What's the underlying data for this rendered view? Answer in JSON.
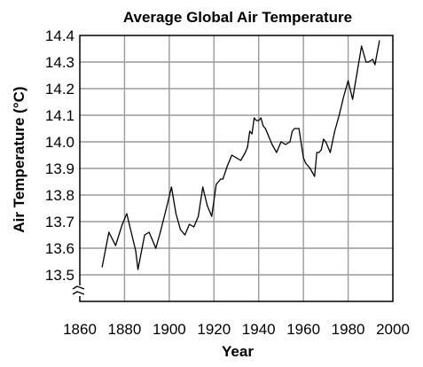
{
  "chart_data": {
    "type": "line",
    "title": "Average Global Air Temperature",
    "xlabel": "Year",
    "ylabel": "Air Temperature (°C)",
    "xlim": [
      1860,
      2000
    ],
    "ylim": [
      13.4,
      14.4
    ],
    "y_axis_break": true,
    "grid": true,
    "x_ticks": [
      1860,
      1880,
      1900,
      1920,
      1940,
      1960,
      1980,
      2000
    ],
    "y_ticks": [
      13.5,
      13.6,
      13.7,
      13.8,
      13.9,
      14.0,
      14.1,
      14.2,
      14.3,
      14.4
    ],
    "y_tick_labels": [
      "13.5",
      "13.6",
      "13.7",
      "13.8",
      "13.9",
      "14.0",
      "14.1",
      "14.2",
      "14.3",
      "14.4"
    ],
    "series": [
      {
        "x": [
          1870,
          1873,
          1876,
          1879,
          1881,
          1883,
          1885,
          1886,
          1889,
          1891,
          1894,
          1896,
          1899,
          1901,
          1903,
          1905,
          1907,
          1909,
          1911,
          1913,
          1915,
          1917,
          1919,
          1921,
          1923,
          1924,
          1926,
          1928,
          1930,
          1932,
          1934,
          1935,
          1936,
          1937,
          1938,
          1939,
          1940,
          1941,
          1942,
          1943,
          1944,
          1946,
          1948,
          1950,
          1952,
          1954,
          1955,
          1956,
          1958,
          1960,
          1961,
          1962,
          1963,
          1965,
          1966,
          1967,
          1968,
          1969,
          1970,
          1971,
          1972,
          1974,
          1976,
          1978,
          1980,
          1982,
          1984,
          1986,
          1988,
          1989,
          1991,
          1992,
          1994
        ],
        "y": [
          13.53,
          13.66,
          13.61,
          13.69,
          13.73,
          13.66,
          13.59,
          13.52,
          13.65,
          13.66,
          13.6,
          13.66,
          13.76,
          13.83,
          13.73,
          13.67,
          13.65,
          13.69,
          13.68,
          13.72,
          13.83,
          13.76,
          13.72,
          13.84,
          13.86,
          13.86,
          13.91,
          13.95,
          13.94,
          13.93,
          13.96,
          13.98,
          14.04,
          14.03,
          14.09,
          14.08,
          14.08,
          14.09,
          14.06,
          14.05,
          14.03,
          13.99,
          13.96,
          14.0,
          13.99,
          14.0,
          14.04,
          14.05,
          14.05,
          13.94,
          13.92,
          13.91,
          13.9,
          13.87,
          13.96,
          13.96,
          13.97,
          14.01,
          14.0,
          13.98,
          13.96,
          14.04,
          14.1,
          14.17,
          14.23,
          14.16,
          14.26,
          14.36,
          14.3,
          14.3,
          14.31,
          14.29,
          14.38
        ]
      }
    ]
  }
}
